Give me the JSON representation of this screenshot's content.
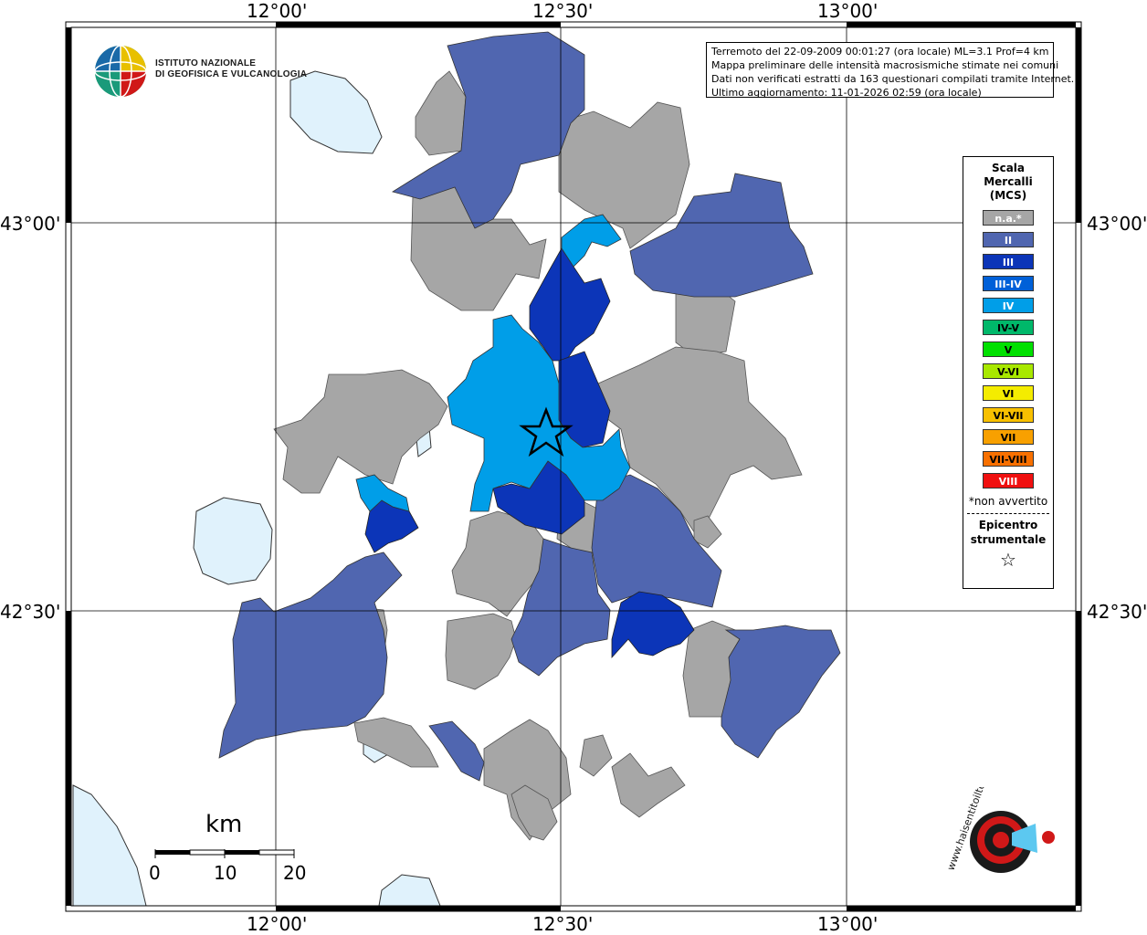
{
  "map": {
    "lat_labels_left": [
      "43°00'",
      "42°30'"
    ],
    "lat_labels_right": [
      "43°00'",
      "42°30'"
    ],
    "lon_labels_top": [
      "12°00'",
      "12°30'",
      "13°00'"
    ],
    "lon_labels_bottom": [
      "12°00'",
      "12°30'",
      "13°00'"
    ],
    "colors": {
      "na": "#a6a6a6",
      "II": "#5066b0",
      "III": "#0c35b8",
      "IV": "#009ee8",
      "lake": "#e0f2fc",
      "grid": "#000000"
    }
  },
  "logo": {
    "line1": "ISTITUTO NAZIONALE",
    "line2": "DI GEOFISICA E VULCANOLOGIA"
  },
  "info": {
    "line1": "Terremoto del 22-09-2009 00:01:27 (ora locale) ML=3.1 Prof=4 km",
    "line2": "Mappa preliminare delle intensità macrosismiche stimate nei comuni",
    "line3": "Dati non verificati estratti da 163 questionari compilati tramite Internet.",
    "line4": "Ultimo aggiornamento: 11-01-2026 02:59 (ora locale)"
  },
  "legend": {
    "title1": "Scala",
    "title2": "Mercalli",
    "title3": "(MCS)",
    "items": [
      {
        "label": "n.a.*",
        "color": "#a6a6a6",
        "text": "#ffffff"
      },
      {
        "label": "II",
        "color": "#5066b0",
        "text": "#ffffff"
      },
      {
        "label": "III",
        "color": "#0c35b8",
        "text": "#ffffff"
      },
      {
        "label": "III-IV",
        "color": "#0060d8",
        "text": "#ffffff"
      },
      {
        "label": "IV",
        "color": "#009ee8",
        "text": "#ffffff"
      },
      {
        "label": "IV-V",
        "color": "#00b86a",
        "text": "#000000"
      },
      {
        "label": "V",
        "color": "#00e000",
        "text": "#000000"
      },
      {
        "label": "V-VI",
        "color": "#a8e800",
        "text": "#000000"
      },
      {
        "label": "VI",
        "color": "#f4ec00",
        "text": "#000000"
      },
      {
        "label": "VI-VII",
        "color": "#f8c000",
        "text": "#000000"
      },
      {
        "label": "VII",
        "color": "#f8a000",
        "text": "#000000"
      },
      {
        "label": "VII-VIII",
        "color": "#f87000",
        "text": "#000000"
      },
      {
        "label": "VIII",
        "color": "#f01010",
        "text": "#ffffff"
      }
    ],
    "note": "*non avvertito",
    "epi1": "Epicentro",
    "epi2": "strumentale",
    "star": "☆"
  },
  "scale": {
    "unit": "km",
    "labels": [
      "0",
      "10",
      "20"
    ]
  },
  "badge": {
    "text": "www.haisentitoilterremoto.it"
  }
}
